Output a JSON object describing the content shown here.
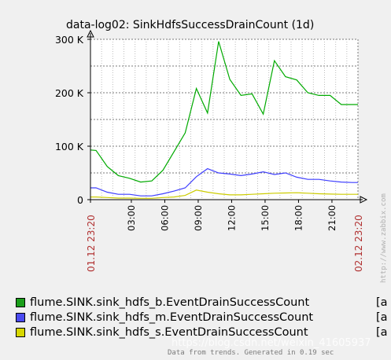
{
  "chart_data": {
    "type": "line",
    "title": "data-log02: SinkHdfsSuccessDrainCount (1d)",
    "y_ticks": [
      "0",
      "100 K",
      "200 K",
      "300 K"
    ],
    "ylim": [
      0,
      300000
    ],
    "x_ticks": [
      "03:00",
      "06:00",
      "09:00",
      "12:00",
      "15:00",
      "18:00",
      "21:00"
    ],
    "x_start_label": "01.12 23:20",
    "x_end_label": "02.12 23:20",
    "x_range_hours": [
      0,
      24
    ],
    "grid": true,
    "series": [
      {
        "name": "flume.SINK.sink_hdfs_b.EventDrainSuccessCount",
        "color": "#00aa00",
        "swatch": "#1a9e1a",
        "x": [
          0,
          0.5,
          1.5,
          2.5,
          3.5,
          4.5,
          5.5,
          6.5,
          7.5,
          8.5,
          9.5,
          10.5,
          11.5,
          12.5,
          13.5,
          14.5,
          15.5,
          16.5,
          17.5,
          18.5,
          19.5,
          20.5,
          21.5,
          22.5,
          23.5,
          24
        ],
        "values": [
          93000,
          92000,
          62000,
          45000,
          40000,
          33000,
          35000,
          55000,
          90000,
          125000,
          208000,
          162000,
          296000,
          225000,
          195000,
          198000,
          160000,
          260000,
          230000,
          224000,
          200000,
          195000,
          195000,
          178000,
          178000,
          178000
        ]
      },
      {
        "name": "flume.SINK.sink_hdfs_m.EventDrainSuccessCount",
        "color": "#3f3fff",
        "swatch": "#4a4af0",
        "x": [
          0,
          0.5,
          1.5,
          2.5,
          3.5,
          4.5,
          5.5,
          6.5,
          7.5,
          8.5,
          9.5,
          10.5,
          11.5,
          12.5,
          13.5,
          14.5,
          15.5,
          16.5,
          17.5,
          18.5,
          19.5,
          20.5,
          21.5,
          22.5,
          23.5,
          24
        ],
        "values": [
          22000,
          22000,
          14000,
          10000,
          10000,
          7000,
          7000,
          11000,
          16000,
          22000,
          43000,
          58000,
          50000,
          48000,
          45000,
          48000,
          52000,
          47000,
          50000,
          42000,
          38000,
          38000,
          35000,
          33000,
          32000,
          32000
        ]
      },
      {
        "name": "flume.SINK.sink_hdfs_s.EventDrainSuccessCount",
        "color": "#cccc00",
        "swatch": "#d7d700",
        "x": [
          0,
          0.5,
          1.5,
          2.5,
          3.5,
          4.5,
          5.5,
          6.5,
          7.5,
          8.5,
          9.5,
          10.5,
          11.5,
          12.5,
          13.5,
          14.5,
          15.5,
          16.5,
          17.5,
          18.5,
          19.5,
          20.5,
          21.5,
          22.5,
          23.5,
          24
        ],
        "values": [
          5000,
          5000,
          4000,
          3000,
          3000,
          2500,
          2500,
          4000,
          5000,
          8000,
          18000,
          14000,
          11000,
          9000,
          9000,
          10000,
          11000,
          12000,
          12500,
          13000,
          12000,
          11000,
          10500,
          10000,
          10000,
          10000
        ]
      }
    ]
  },
  "legend": {
    "items": [
      {
        "label": "flume.SINK.sink_hdfs_b.EventDrainSuccessCount",
        "tail": "[a"
      },
      {
        "label": "flume.SINK.sink_hdfs_m.EventDrainSuccessCount",
        "tail": "[a"
      },
      {
        "label": "flume.SINK.sink_hdfs_s.EventDrainSuccessCount",
        "tail": "[a"
      }
    ]
  },
  "side_credit": "http://www.zabbix.com",
  "footer": "Data from trends. Generated in 0.19 sec",
  "watermark": "https://blog.csdn.net/weixin_41605937"
}
